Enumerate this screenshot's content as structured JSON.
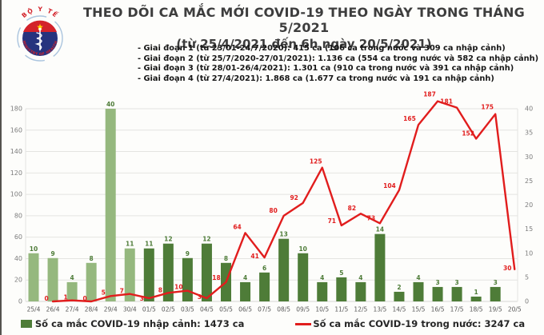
{
  "header": {
    "title_line1": "THEO DÕI CA MẮC MỚI COVID-19 THEO NGÀY TRONG THÁNG 5/2021",
    "title_line2": "(từ 25/4/2021 đến 6h ngày 20/5/2021)",
    "bullets": [
      "- Giai đoạn 1 (từ 23/01-24/7/2020): 415 ca (106 ca trong nước và 309 ca nhập cảnh)",
      "- Giai đoạn 2 (từ 25/7/2020-27/01/2021): 1.136 ca (554 ca trong nước và 582 ca nhập cảnh)",
      "- Giai đoạn 3 (từ 28/01-26/4/2021): 1.301 ca (910 ca trong nước và 391 ca nhập cảnh)",
      "- Giai đoạn 4 (từ 27/4/2021): 1.868 ca (1.677 ca trong nước và 191 ca nhập cảnh)"
    ],
    "logo": {
      "top_text": "BỘ Y TẾ",
      "bottom_text": "MINISTRY OF HEALTH"
    }
  },
  "chart_data": {
    "type": "bar+line",
    "title": "THEO DÕI CA MẮC MỚI COVID-19 THEO NGÀY TRONG THÁNG 5/2021",
    "categories": [
      "25/4",
      "26/4",
      "27/4",
      "28/4",
      "29/4",
      "30/4",
      "01/5",
      "02/5",
      "03/5",
      "04/5",
      "05/5",
      "06/5",
      "07/5",
      "08/5",
      "09/5",
      "10/5",
      "11/5",
      "12/5",
      "13/5",
      "14/5",
      "15/5",
      "16/5",
      "17/5",
      "18/5",
      "19/5",
      "20/5"
    ],
    "series": [
      {
        "name": "Số ca mắc COVID-19 nhập cảnh",
        "type": "bar",
        "axis": "right",
        "values": [
          10,
          9,
          4,
          8,
          40,
          11,
          11,
          12,
          9,
          12,
          8,
          4,
          6,
          13,
          10,
          4,
          5,
          4,
          14,
          2,
          4,
          3,
          3,
          1,
          3,
          null
        ]
      },
      {
        "name": "Số ca mắc COVID-19 trong nước",
        "type": "line",
        "axis": "left",
        "values": [
          null,
          0,
          1,
          0,
          5,
          7,
          3,
          8,
          10,
          3,
          18,
          64,
          41,
          80,
          92,
          125,
          71,
          82,
          73,
          104,
          165,
          187,
          181,
          152,
          175,
          30
        ]
      }
    ],
    "left_axis": {
      "min": 0,
      "max": 180,
      "step": 20
    },
    "right_axis": {
      "min": 0,
      "max": 40,
      "step": 5
    },
    "grid": true,
    "legend_position": "bottom",
    "colors": {
      "bar_april": "#95b87e",
      "bar_may": "#4e7c38",
      "bar_label": "#4e7c38",
      "line": "#e11d1d",
      "gridline": "#e4e4e1",
      "axis_text": "#7d7d7d",
      "date_text": "#595959"
    }
  },
  "legend": {
    "imported_label": "Số ca mắc COVID-19 nhập cảnh: 1473 ca",
    "domestic_label": "Số ca mắc COVID-19 trong nước: 3247 ca"
  }
}
